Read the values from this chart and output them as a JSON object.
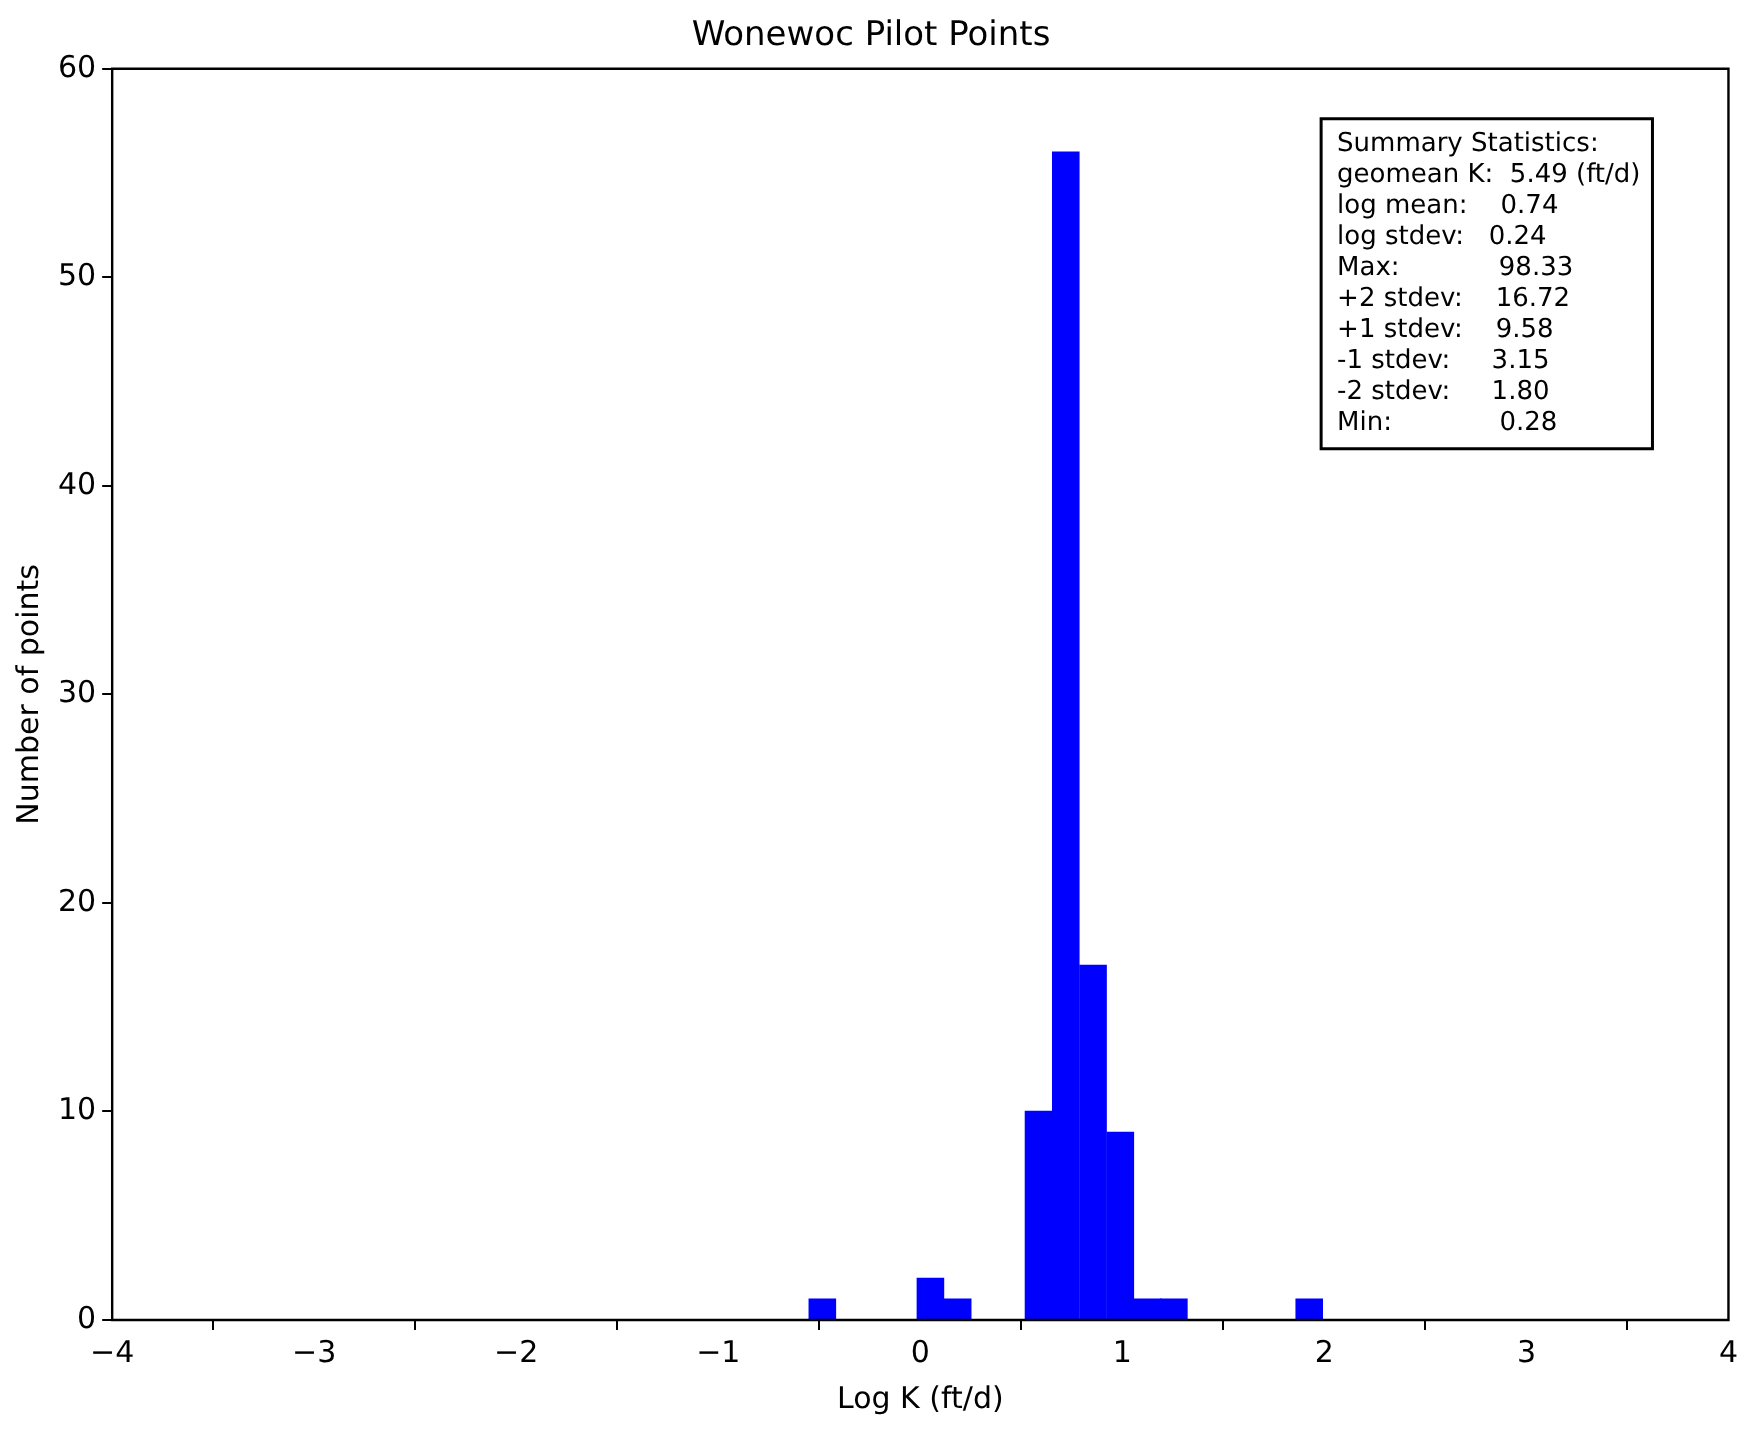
{
  "chart_data": {
    "type": "histogram",
    "title": "Wonewoc Pilot Points",
    "xlabel": "Log K (ft/d)",
    "ylabel": "Number of points",
    "bins": [
      -0.55,
      -0.42,
      -0.28,
      -0.15,
      -0.02,
      0.12,
      0.25,
      0.39,
      0.52,
      0.65,
      0.79,
      0.92,
      1.06,
      1.19,
      1.32,
      1.46,
      1.59,
      1.72,
      1.86,
      1.99
    ],
    "values": [
      1,
      0,
      0,
      0,
      2,
      1,
      0,
      0,
      10,
      56,
      17,
      9,
      1,
      1,
      0,
      0,
      0,
      0,
      1
    ],
    "color": "#0000ff",
    "xlim": [
      -4,
      4
    ],
    "xticks": [
      {
        "value": -4,
        "label": "−4"
      },
      {
        "value": -3,
        "label": "−3"
      },
      {
        "value": -2,
        "label": "−2"
      },
      {
        "value": -1,
        "label": "−1"
      },
      0,
      1,
      2,
      3,
      4
    ],
    "ylim": [
      0,
      60
    ],
    "yticks": [
      0,
      10,
      20,
      30,
      40,
      50,
      60
    ],
    "grid": false,
    "legend": false,
    "annotations": [
      "Summary Statistics:",
      "geomean K:  5.49 (ft/d)",
      "log mean:    0.74",
      "log stdev:   0.24",
      "Max:            98.33",
      "+2 stdev:    16.72",
      "+1 stdev:    9.58",
      "-1 stdev:     3.15",
      "-2 stdev:     1.80",
      "Min:             0.28"
    ]
  }
}
